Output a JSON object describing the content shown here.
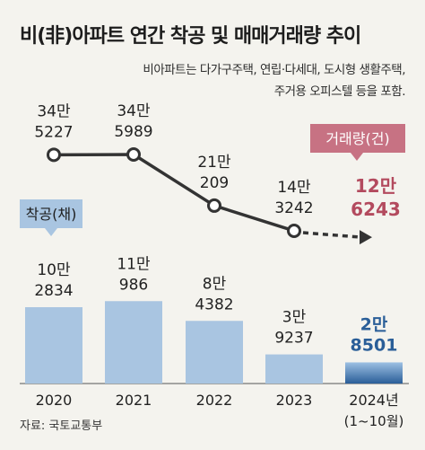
{
  "title": "비(非)아파트 연간 착공 및 매매거래량 추이",
  "subtitle_lines": [
    "비아파트는 다가구주택, 연립·다세대, 도시형 생활주택,",
    "주거용 오피스텔 등을 포함."
  ],
  "source": "자료: 국토교통부",
  "colors": {
    "bar": "#a9c5e1",
    "bar_highlight_top": "#9dc0e3",
    "bar_highlight_bottom": "#2a5e98",
    "line": "#333333",
    "line_label_highlight": "#b34a5e",
    "bar_label_highlight": "#2a5e98",
    "badge_line": "#c77283",
    "badge_bar": "#a9c5e1"
  },
  "chart_data": {
    "type": "bar+line",
    "categories": [
      "2020",
      "2021",
      "2022",
      "2023",
      "2024년"
    ],
    "category_note": "(1~10월)",
    "series": [
      {
        "name": "착공(채)",
        "type": "bar",
        "values": [
          102834,
          110986,
          84382,
          39237,
          28501
        ],
        "labels": [
          [
            "10만",
            "2834"
          ],
          [
            "11만",
            "986"
          ],
          [
            "8만",
            "4382"
          ],
          [
            "3만",
            "9237"
          ],
          [
            "2만",
            "8501"
          ]
        ]
      },
      {
        "name": "거래량(건)",
        "type": "line",
        "values": [
          345227,
          345989,
          210209,
          143242,
          126243
        ],
        "labels": [
          [
            "34만",
            "5227"
          ],
          [
            "34만",
            "5989"
          ],
          [
            "21만",
            "209"
          ],
          [
            "14만",
            "3242"
          ],
          [
            "12만",
            "6243"
          ]
        ]
      }
    ],
    "highlight_index": 4,
    "legend": [
      "착공(채)",
      "거래량(건)"
    ]
  }
}
